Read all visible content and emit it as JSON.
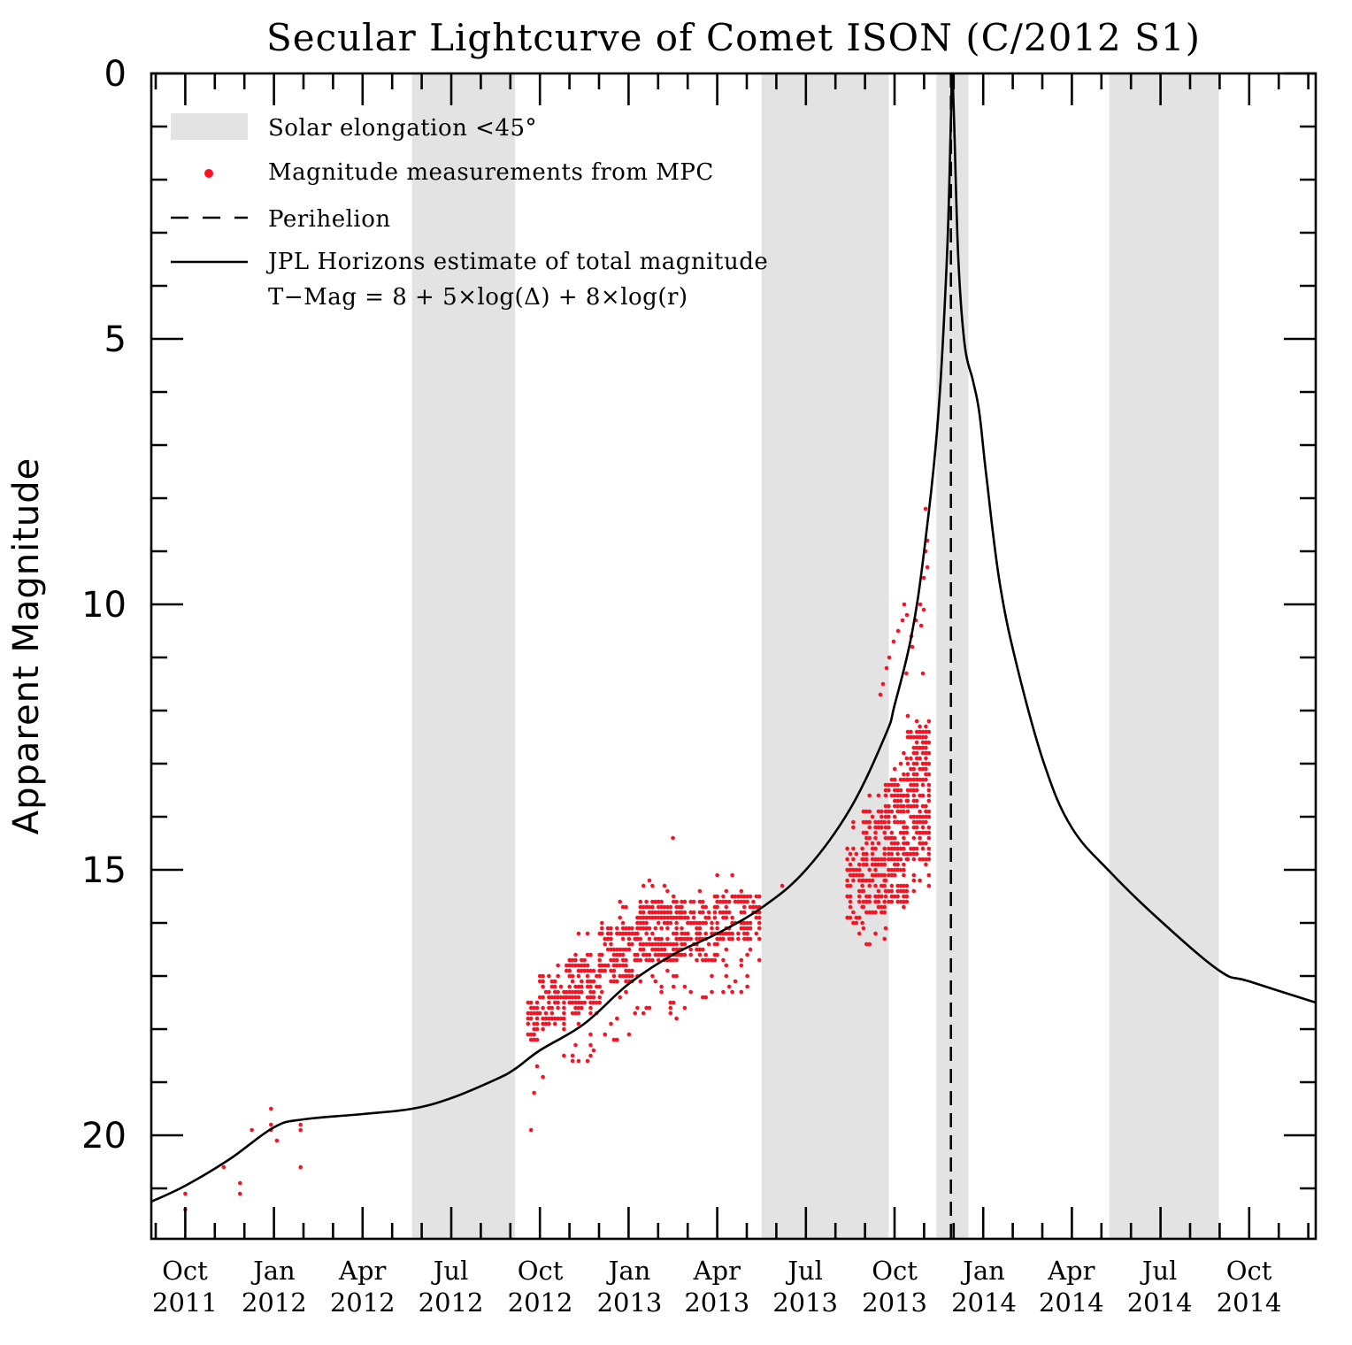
{
  "chart_data": {
    "type": "scatter",
    "title": "Secular Lightcurve of Comet ISON (C/2012 S1)",
    "xlabel": "",
    "ylabel": "Apparent Magnitude",
    "ylim": [
      22,
      0
    ],
    "y_inverted": true,
    "xlim": [
      "2011-08-27",
      "2014-12-13"
    ],
    "grid": false,
    "y_major_ticks": [
      0,
      5,
      10,
      15,
      20
    ],
    "y_tick_labels": [
      "0",
      "5",
      "10",
      "15",
      "20"
    ],
    "y_minor_step": 1,
    "x_tick_labels": [
      {
        "date": "2011-10-01",
        "month": "Oct",
        "year": "2011"
      },
      {
        "date": "2012-01-01",
        "month": "Jan",
        "year": "2012"
      },
      {
        "date": "2012-04-01",
        "month": "Apr",
        "year": "2012"
      },
      {
        "date": "2012-07-01",
        "month": "Jul",
        "year": "2012"
      },
      {
        "date": "2012-10-01",
        "month": "Oct",
        "year": "2012"
      },
      {
        "date": "2013-01-01",
        "month": "Jan",
        "year": "2013"
      },
      {
        "date": "2013-04-01",
        "month": "Apr",
        "year": "2013"
      },
      {
        "date": "2013-07-01",
        "month": "Jul",
        "year": "2013"
      },
      {
        "date": "2013-10-01",
        "month": "Oct",
        "year": "2013"
      },
      {
        "date": "2014-01-01",
        "month": "Jan",
        "year": "2014"
      },
      {
        "date": "2014-04-01",
        "month": "Apr",
        "year": "2014"
      },
      {
        "date": "2014-07-01",
        "month": "Jul",
        "year": "2014"
      },
      {
        "date": "2014-10-01",
        "month": "Oct",
        "year": "2014"
      }
    ],
    "x_minor_step": "1 month",
    "legend": {
      "placement": "top-left",
      "entries": [
        {
          "label": "Solar elongation <45°",
          "kind": "band"
        },
        {
          "label": "Magnitude measurements from MPC",
          "kind": "dot"
        },
        {
          "label": "Perihelion",
          "kind": "dashed"
        },
        {
          "label": "JPL Horizons estimate of total magnitude",
          "kind": "line"
        },
        {
          "label": "T−Mag = 8  + 5×log(Δ) + 8×log(r)",
          "kind": "none"
        }
      ]
    },
    "colors": {
      "band": "#e3e3e3",
      "dots": "#ff1020",
      "curve": "#000000",
      "axis": "#000000"
    },
    "solar_elongation_bands": [
      {
        "start": "2012-05-22",
        "end": "2012-09-05"
      },
      {
        "start": "2013-05-17",
        "end": "2013-09-25"
      },
      {
        "start": "2013-11-13",
        "end": "2013-12-16"
      },
      {
        "start": "2014-05-10",
        "end": "2014-08-31"
      }
    ],
    "perihelion": "2013-11-28",
    "series": [
      {
        "name": "JPL Horizons estimate of total magnitude",
        "type": "line",
        "points_month_offset_from_2011_09_01": [
          [
            -0.15,
            21.25
          ],
          [
            1,
            20.95
          ],
          [
            2.5,
            20.45
          ],
          [
            4,
            19.85
          ],
          [
            5,
            19.7
          ],
          [
            7,
            19.6
          ],
          [
            8.68,
            19.5
          ],
          [
            10,
            19.3
          ],
          [
            11.5,
            18.95
          ],
          [
            12.16,
            18.75
          ],
          [
            13,
            18.4
          ],
          [
            14.5,
            17.9
          ],
          [
            16,
            17.15
          ],
          [
            17.5,
            16.6
          ],
          [
            19,
            16.2
          ],
          [
            20.54,
            15.7
          ],
          [
            22,
            15.0
          ],
          [
            23.5,
            13.85
          ],
          [
            24.7,
            12.45
          ],
          [
            25,
            11.9
          ],
          [
            25.57,
            10.6
          ],
          [
            26,
            9.0
          ],
          [
            26.47,
            6.5
          ],
          [
            26.77,
            3.5
          ],
          [
            26.9,
            1.0
          ],
          [
            26.95,
            0.0
          ],
          [
            27.02,
            1.0
          ],
          [
            27.16,
            3.5
          ],
          [
            27.37,
            5.1
          ],
          [
            27.66,
            5.8
          ],
          [
            27.87,
            6.4
          ],
          [
            28.11,
            7.6
          ],
          [
            28.56,
            9.6
          ],
          [
            29.16,
            11.2
          ],
          [
            30.06,
            13.0
          ],
          [
            30.99,
            14.2
          ],
          [
            32.31,
            15.05
          ],
          [
            33.98,
            15.95
          ],
          [
            35.99,
            16.9
          ],
          [
            37,
            17.1
          ],
          [
            39.4,
            17.5
          ]
        ]
      },
      {
        "name": "Magnitude measurements from MPC",
        "type": "scatter",
        "isolated_points_month_mag": [
          [
            1.0,
            21.1
          ],
          [
            1.0,
            21.4
          ],
          [
            2.3,
            20.6
          ],
          [
            2.85,
            20.9
          ],
          [
            2.85,
            21.1
          ],
          [
            3.25,
            19.9
          ],
          [
            3.9,
            19.5
          ],
          [
            3.9,
            19.8
          ],
          [
            3.9,
            19.9
          ],
          [
            4.1,
            20.1
          ],
          [
            4.9,
            19.8
          ],
          [
            4.9,
            19.9
          ],
          [
            4.9,
            20.6
          ],
          [
            12.7,
            19.9
          ],
          [
            21.2,
            15.3
          ],
          [
            17.5,
            14.4
          ]
        ],
        "cluster_bins_month_range_mag_range_density": [
          {
            "m0": 12.6,
            "m1": 13.0,
            "lo": 17.3,
            "hi": 19.2,
            "dlo": 17.5,
            "dhi": 18.3,
            "density": 0.75
          },
          {
            "m0": 13.0,
            "m1": 13.9,
            "lo": 16.8,
            "hi": 18.9,
            "dlo": 17.0,
            "dhi": 18.0,
            "density": 0.6
          },
          {
            "m0": 13.9,
            "m1": 15.1,
            "lo": 16.2,
            "hi": 18.6,
            "dlo": 16.6,
            "dhi": 17.8,
            "density": 0.55
          },
          {
            "m0": 15.1,
            "m1": 16.3,
            "lo": 15.6,
            "hi": 18.3,
            "dlo": 16.0,
            "dhi": 17.2,
            "density": 0.55
          },
          {
            "m0": 16.3,
            "m1": 17.8,
            "lo": 15.2,
            "hi": 17.8,
            "dlo": 15.5,
            "dhi": 16.8,
            "density": 0.65
          },
          {
            "m0": 17.8,
            "m1": 19.0,
            "lo": 15.0,
            "hi": 17.7,
            "dlo": 15.5,
            "dhi": 16.8,
            "density": 0.6
          },
          {
            "m0": 19.0,
            "m1": 20.5,
            "lo": 14.9,
            "hi": 17.3,
            "dlo": 15.4,
            "dhi": 16.4,
            "density": 0.6
          },
          {
            "m0": 23.4,
            "m1": 23.95,
            "lo": 14.0,
            "hi": 16.4,
            "dlo": 14.5,
            "dhi": 16.0,
            "density": 0.5
          },
          {
            "m0": 23.95,
            "m1": 24.7,
            "lo": 13.5,
            "hi": 16.4,
            "dlo": 13.8,
            "dhi": 15.8,
            "density": 0.6
          },
          {
            "m0": 24.7,
            "m1": 25.45,
            "lo": 12.5,
            "hi": 16.2,
            "dlo": 13.2,
            "dhi": 15.6,
            "density": 0.65
          },
          {
            "m0": 25.45,
            "m1": 26.2,
            "lo": 11.3,
            "hi": 15.5,
            "dlo": 12.2,
            "dhi": 14.8,
            "density": 0.6
          }
        ],
        "bright_streak_points_month_mag": [
          [
            24.52,
            11.7
          ],
          [
            24.61,
            11.5
          ],
          [
            24.73,
            11.2
          ],
          [
            24.82,
            11.0
          ],
          [
            24.97,
            10.7
          ],
          [
            25.12,
            10.5
          ],
          [
            25.27,
            10.3
          ],
          [
            25.33,
            10.0
          ],
          [
            25.42,
            10.2
          ],
          [
            25.57,
            10.6
          ],
          [
            25.72,
            10.3
          ],
          [
            25.87,
            10.0
          ],
          [
            25.99,
            9.5
          ],
          [
            26.05,
            9.0
          ],
          [
            26.11,
            8.8
          ],
          [
            26.05,
            8.2
          ],
          [
            26.11,
            9.3
          ],
          [
            25.99,
            10.1
          ],
          [
            25.9,
            10.4
          ],
          [
            25.6,
            10.8
          ],
          [
            25.4,
            11.3
          ]
        ]
      }
    ]
  }
}
